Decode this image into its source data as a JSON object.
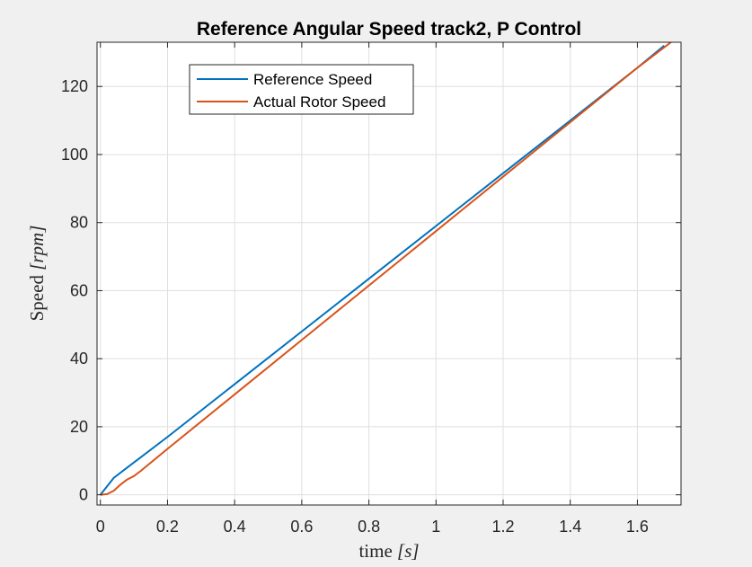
{
  "chart_data": {
    "type": "line",
    "title": "Reference Angular Speed track2, P Control",
    "xlabel": {
      "main": "time ",
      "unit": "[s]",
      "unit_var": "s"
    },
    "ylabel": {
      "main": "Speed ",
      "unit": "[rpm]",
      "unit_var": "rpm"
    },
    "xlim": [
      -0.01,
      1.73
    ],
    "ylim": [
      -3,
      133
    ],
    "xticks": [
      0,
      0.2,
      0.4,
      0.6,
      0.8,
      1,
      1.2,
      1.4,
      1.6
    ],
    "xtick_labels": [
      "0",
      "0.2",
      "0.4",
      "0.6",
      "0.8",
      "1",
      "1.2",
      "1.4",
      "1.6"
    ],
    "yticks": [
      0,
      20,
      40,
      60,
      80,
      100,
      120
    ],
    "ytick_labels": [
      "0",
      "20",
      "40",
      "60",
      "80",
      "100",
      "120"
    ],
    "grid": true,
    "legend_position": "top-left",
    "series": [
      {
        "name": "Reference Speed",
        "color": "#0072BD",
        "x": [
          0,
          0.04,
          0.08,
          0.2,
          0.4,
          0.6,
          0.8,
          1.0,
          1.2,
          1.4,
          1.6,
          1.68
        ],
        "y": [
          0,
          5,
          8,
          17,
          32.5,
          48,
          63.5,
          79,
          94.5,
          110,
          125.5,
          132
        ]
      },
      {
        "name": "Actual Rotor Speed",
        "color": "#D95319",
        "x": [
          0,
          0.02,
          0.04,
          0.06,
          0.08,
          0.1,
          0.12,
          0.2,
          0.4,
          0.6,
          0.8,
          1.0,
          1.2,
          1.4,
          1.6,
          1.7
        ],
        "y": [
          0,
          0.2,
          1.2,
          3,
          4.5,
          5.5,
          7,
          13.5,
          29.5,
          45.5,
          61.5,
          77.5,
          93.5,
          109.5,
          125.5,
          133
        ]
      }
    ]
  }
}
